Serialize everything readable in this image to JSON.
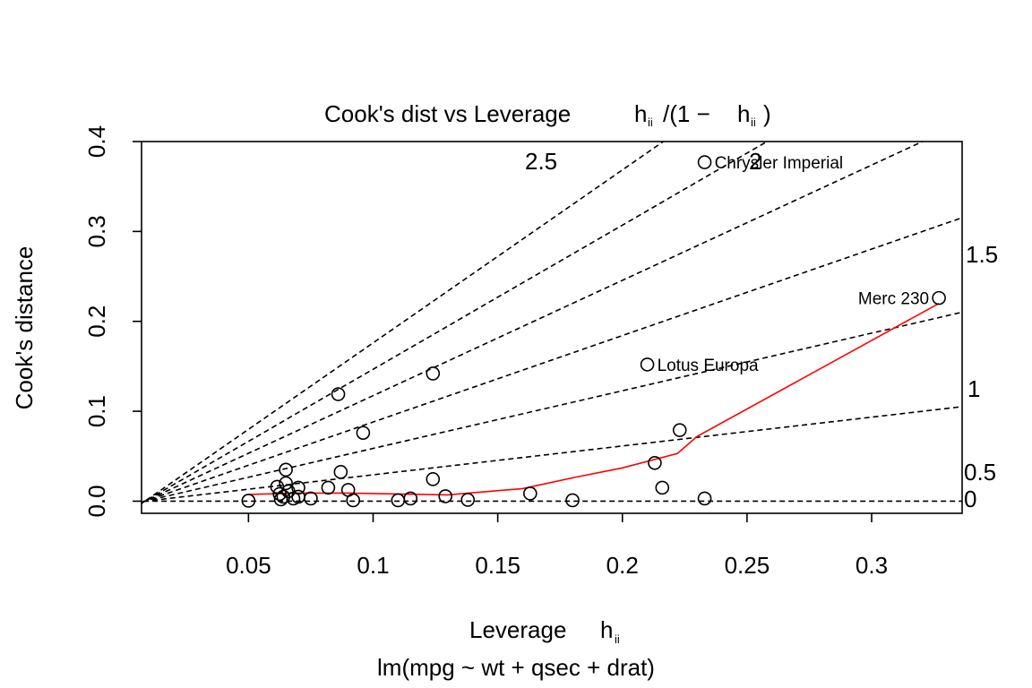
{
  "chart_data": {
    "type": "scatter",
    "title": "Cook's dist vs Leverage",
    "title_formula": {
      "lhs": "h",
      "lhs_sub": "ii",
      "slash": "/(1 − ",
      "rhs": "h",
      "rhs_sub": "ii",
      "close": ")"
    },
    "xlabel": "Leverage",
    "xlabel_symbol": "h",
    "xlabel_sub": "ii",
    "ylabel": "Cook's distance",
    "subtitle": "lm(mpg ~ wt + qsec + drat)",
    "xlim": [
      0.0071,
      0.3363
    ],
    "ylim": [
      -0.0135,
      0.4
    ],
    "x_ticks": [
      {
        "value": 0.05,
        "label": "0.05"
      },
      {
        "value": 0.1,
        "label": "0.1"
      },
      {
        "value": 0.15,
        "label": "0.15"
      },
      {
        "value": 0.2,
        "label": "0.2"
      },
      {
        "value": 0.25,
        "label": "0.25"
      },
      {
        "value": 0.3,
        "label": "0.3"
      }
    ],
    "y_ticks": [
      {
        "value": 0.0,
        "label": "0.0"
      },
      {
        "value": 0.1,
        "label": "0.1"
      },
      {
        "value": 0.2,
        "label": "0.2"
      },
      {
        "value": 0.3,
        "label": "0.3"
      },
      {
        "value": 0.4,
        "label": "0.4"
      }
    ],
    "points": [
      {
        "x": 0.05,
        "y": 0.0005
      },
      {
        "x": 0.0615,
        "y": 0.016
      },
      {
        "x": 0.0625,
        "y": 0.008
      },
      {
        "x": 0.063,
        "y": 0.002
      },
      {
        "x": 0.064,
        "y": 0.005
      },
      {
        "x": 0.065,
        "y": 0.035
      },
      {
        "x": 0.065,
        "y": 0.02
      },
      {
        "x": 0.066,
        "y": 0.011
      },
      {
        "x": 0.068,
        "y": 0.003
      },
      {
        "x": 0.07,
        "y": 0.015
      },
      {
        "x": 0.07,
        "y": 0.005
      },
      {
        "x": 0.075,
        "y": 0.003
      },
      {
        "x": 0.082,
        "y": 0.015
      },
      {
        "x": 0.086,
        "y": 0.119
      },
      {
        "x": 0.087,
        "y": 0.0325
      },
      {
        "x": 0.09,
        "y": 0.0125
      },
      {
        "x": 0.092,
        "y": 0.001
      },
      {
        "x": 0.096,
        "y": 0.076
      },
      {
        "x": 0.11,
        "y": 0.001
      },
      {
        "x": 0.115,
        "y": 0.003
      },
      {
        "x": 0.124,
        "y": 0.142
      },
      {
        "x": 0.124,
        "y": 0.0245
      },
      {
        "x": 0.129,
        "y": 0.0055
      },
      {
        "x": 0.138,
        "y": 0.0015
      },
      {
        "x": 0.163,
        "y": 0.0085
      },
      {
        "x": 0.18,
        "y": 0.001
      },
      {
        "x": 0.21,
        "y": 0.152,
        "label": "Lotus Europa"
      },
      {
        "x": 0.213,
        "y": 0.0425
      },
      {
        "x": 0.216,
        "y": 0.015
      },
      {
        "x": 0.223,
        "y": 0.079
      },
      {
        "x": 0.233,
        "y": 0.377,
        "label": "Chrysler Imperial"
      },
      {
        "x": 0.233,
        "y": 0.003
      },
      {
        "x": 0.327,
        "y": 0.226,
        "label": "Merc 230"
      }
    ],
    "smooth_line": {
      "color": "#ff0000",
      "x": [
        0.05,
        0.07,
        0.09,
        0.11,
        0.13,
        0.16,
        0.18,
        0.2,
        0.222,
        0.23,
        0.327
      ],
      "y": [
        0.0075,
        0.009,
        0.009,
        0.008,
        0.007,
        0.014,
        0.026,
        0.037,
        0.053,
        0.072,
        0.22
      ]
    },
    "contour_slopes": [
      {
        "slope": 0,
        "label": "0"
      },
      {
        "slope": 0.5,
        "label": "0.5"
      },
      {
        "slope": 1,
        "label": "1"
      },
      {
        "slope": 1.5,
        "label": "1.5"
      },
      {
        "slope": 2,
        "label": "2"
      },
      {
        "slope": 2.5,
        "label": "2.5"
      },
      {
        "slope": 3,
        "label": ""
      }
    ],
    "grid": false
  }
}
